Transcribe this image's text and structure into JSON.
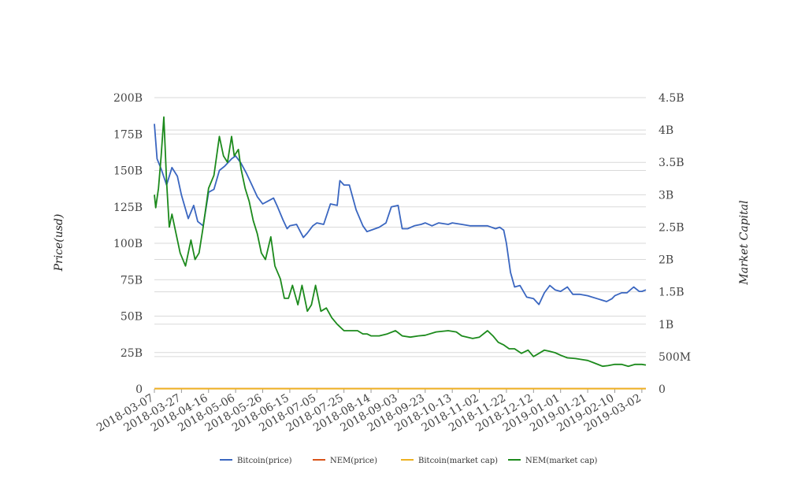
{
  "chart_data": {
    "type": "line",
    "title": "",
    "ylabel": "Price(usd)",
    "y2label": "Market Capital",
    "ylim": [
      0,
      200000000000
    ],
    "y2lim": [
      0,
      4500000000
    ],
    "yticks": [
      "0",
      "25B",
      "50B",
      "75B",
      "100B",
      "125B",
      "150B",
      "175B",
      "200B"
    ],
    "y2ticks": [
      "0",
      "500M",
      "1B",
      "1.5B",
      "2B",
      "2.5B",
      "3B",
      "3.5B",
      "4B",
      "4.5B"
    ],
    "xticks": [
      "2018-03-07",
      "2018-03-27",
      "2018-04-16",
      "2018-05-06",
      "2018-05-26",
      "2018-06-15",
      "2018-07-05",
      "2018-07-25",
      "2018-08-14",
      "2018-09-03",
      "2018-09-23",
      "2018-10-13",
      "2018-11-02",
      "2018-11-22",
      "2018-12-12",
      "2019-01-01",
      "2019-01-21",
      "2019-02-10",
      "2019-03-02"
    ],
    "x_start": "2018-03-07",
    "x_end": "2019-03-05",
    "grid": true,
    "legend_position": "bottom",
    "series": [
      {
        "name": "Bitcoin(price)",
        "axis": "left",
        "color": "#3a66c0",
        "x": [
          "2018-03-07",
          "2018-03-09",
          "2018-03-12",
          "2018-03-16",
          "2018-03-20",
          "2018-03-24",
          "2018-03-27",
          "2018-04-01",
          "2018-04-05",
          "2018-04-08",
          "2018-04-12",
          "2018-04-16",
          "2018-04-20",
          "2018-04-24",
          "2018-04-28",
          "2018-05-03",
          "2018-05-06",
          "2018-05-10",
          "2018-05-14",
          "2018-05-18",
          "2018-05-22",
          "2018-05-26",
          "2018-05-30",
          "2018-06-03",
          "2018-06-06",
          "2018-06-10",
          "2018-06-13",
          "2018-06-15",
          "2018-06-20",
          "2018-06-25",
          "2018-06-28",
          "2018-07-02",
          "2018-07-05",
          "2018-07-10",
          "2018-07-15",
          "2018-07-20",
          "2018-07-22",
          "2018-07-25",
          "2018-07-29",
          "2018-08-03",
          "2018-08-08",
          "2018-08-11",
          "2018-08-14",
          "2018-08-20",
          "2018-08-25",
          "2018-08-29",
          "2018-09-03",
          "2018-09-06",
          "2018-09-10",
          "2018-09-15",
          "2018-09-20",
          "2018-09-23",
          "2018-09-28",
          "2018-10-03",
          "2018-10-10",
          "2018-10-13",
          "2018-10-20",
          "2018-10-26",
          "2018-11-02",
          "2018-11-08",
          "2018-11-14",
          "2018-11-17",
          "2018-11-20",
          "2018-11-22",
          "2018-11-25",
          "2018-11-28",
          "2018-12-02",
          "2018-12-07",
          "2018-12-12",
          "2018-12-16",
          "2018-12-20",
          "2018-12-24",
          "2018-12-28",
          "2019-01-01",
          "2019-01-06",
          "2019-01-10",
          "2019-01-15",
          "2019-01-21",
          "2019-01-28",
          "2019-02-04",
          "2019-02-08",
          "2019-02-10",
          "2019-02-15",
          "2019-02-19",
          "2019-02-24",
          "2019-02-28",
          "2019-03-02",
          "2019-03-05"
        ],
        "values": [
          182,
          158,
          151,
          140,
          152,
          146,
          133,
          117,
          126,
          115,
          112,
          135,
          137,
          150,
          153,
          158,
          160,
          155,
          148,
          140,
          132,
          127,
          129,
          131,
          125,
          116,
          110,
          112,
          113,
          104,
          107,
          112,
          114,
          113,
          127,
          126,
          143,
          140,
          140,
          123,
          112,
          108,
          109,
          111,
          114,
          125,
          126,
          110,
          110,
          112,
          113,
          114,
          112,
          114,
          113,
          114,
          113,
          112,
          112,
          112,
          110,
          111,
          109,
          100,
          80,
          70,
          71,
          63,
          62,
          58,
          66,
          71,
          68,
          67,
          70,
          65,
          65,
          64,
          62,
          60,
          62,
          64,
          66,
          66,
          70,
          67,
          67,
          68
        ]
      },
      {
        "name": "NEM(price)",
        "axis": "left",
        "color": "#d95319",
        "x": [
          "2018-03-07",
          "2019-03-05"
        ],
        "values": [
          0.2,
          0.2
        ]
      },
      {
        "name": "Bitcoin(market cap)",
        "axis": "right",
        "color": "#edb120",
        "x": [
          "2018-03-07",
          "2019-03-05"
        ],
        "values": [
          0.004,
          0.004
        ]
      },
      {
        "name": "NEM(market cap)",
        "axis": "right",
        "color": "#1c8a1c",
        "x": [
          "2018-03-07",
          "2018-03-08",
          "2018-03-10",
          "2018-03-12",
          "2018-03-14",
          "2018-03-16",
          "2018-03-18",
          "2018-03-20",
          "2018-03-23",
          "2018-03-26",
          "2018-03-30",
          "2018-04-03",
          "2018-04-06",
          "2018-04-09",
          "2018-04-12",
          "2018-04-16",
          "2018-04-20",
          "2018-04-24",
          "2018-04-27",
          "2018-04-30",
          "2018-05-03",
          "2018-05-05",
          "2018-05-08",
          "2018-05-10",
          "2018-05-13",
          "2018-05-16",
          "2018-05-19",
          "2018-05-22",
          "2018-05-25",
          "2018-05-28",
          "2018-06-01",
          "2018-06-04",
          "2018-06-08",
          "2018-06-11",
          "2018-06-14",
          "2018-06-17",
          "2018-06-21",
          "2018-06-24",
          "2018-06-28",
          "2018-07-01",
          "2018-07-04",
          "2018-07-08",
          "2018-07-12",
          "2018-07-16",
          "2018-07-20",
          "2018-07-25",
          "2018-07-30",
          "2018-08-04",
          "2018-08-08",
          "2018-08-11",
          "2018-08-14",
          "2018-08-20",
          "2018-08-26",
          "2018-09-01",
          "2018-09-03",
          "2018-09-06",
          "2018-09-12",
          "2018-09-18",
          "2018-09-23",
          "2018-10-01",
          "2018-10-10",
          "2018-10-16",
          "2018-10-20",
          "2018-10-28",
          "2018-11-02",
          "2018-11-08",
          "2018-11-12",
          "2018-11-16",
          "2018-11-20",
          "2018-11-24",
          "2018-11-28",
          "2018-12-03",
          "2018-12-08",
          "2018-12-12",
          "2018-12-16",
          "2018-12-20",
          "2018-12-24",
          "2018-12-28",
          "2019-01-01",
          "2019-01-06",
          "2019-01-12",
          "2019-01-18",
          "2019-01-21",
          "2019-01-26",
          "2019-02-01",
          "2019-02-05",
          "2019-02-10",
          "2019-02-15",
          "2019-02-20",
          "2019-02-25",
          "2019-03-02",
          "2019-03-05"
        ],
        "values": [
          3.0,
          2.8,
          3.1,
          3.6,
          4.2,
          3.2,
          2.5,
          2.7,
          2.4,
          2.1,
          1.9,
          2.3,
          2.0,
          2.1,
          2.5,
          3.1,
          3.3,
          3.9,
          3.6,
          3.5,
          3.9,
          3.6,
          3.7,
          3.4,
          3.1,
          2.9,
          2.6,
          2.4,
          2.1,
          2.0,
          2.35,
          1.9,
          1.7,
          1.4,
          1.4,
          1.6,
          1.3,
          1.6,
          1.2,
          1.3,
          1.6,
          1.2,
          1.25,
          1.1,
          1.0,
          0.9,
          0.9,
          0.9,
          0.85,
          0.85,
          0.82,
          0.82,
          0.85,
          0.9,
          0.87,
          0.82,
          0.8,
          0.82,
          0.83,
          0.88,
          0.9,
          0.88,
          0.82,
          0.78,
          0.8,
          0.9,
          0.82,
          0.72,
          0.68,
          0.62,
          0.62,
          0.55,
          0.6,
          0.5,
          0.55,
          0.6,
          0.58,
          0.56,
          0.52,
          0.48,
          0.47,
          0.45,
          0.44,
          0.4,
          0.35,
          0.36,
          0.38,
          0.38,
          0.35,
          0.38,
          0.38,
          0.37
        ]
      }
    ]
  }
}
